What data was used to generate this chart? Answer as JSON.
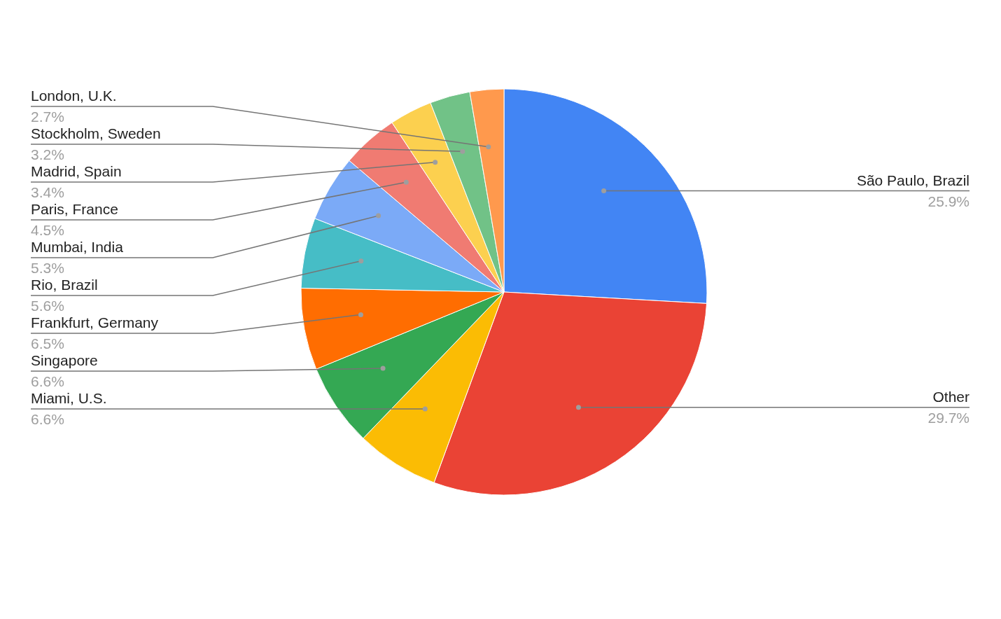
{
  "chart_data": {
    "type": "pie",
    "categories": [
      "São Paulo, Brazil",
      "Other",
      "Miami, U.S.",
      "Singapore",
      "Frankfurt, Germany",
      "Rio, Brazil",
      "Mumbai, India",
      "Paris, France",
      "Madrid, Spain",
      "Stockholm, Sweden",
      "London, U.K."
    ],
    "values": [
      25.9,
      29.7,
      6.6,
      6.6,
      6.5,
      5.6,
      5.3,
      4.5,
      3.4,
      3.2,
      2.7
    ],
    "value_labels": [
      "25.9%",
      "29.7%",
      "6.6%",
      "6.6%",
      "6.5%",
      "5.6%",
      "5.3%",
      "4.5%",
      "3.4%",
      "3.2%",
      "2.7%"
    ],
    "colors": [
      "#4285f4",
      "#ea4335",
      "#fbbc04",
      "#34a853",
      "#ff6d01",
      "#46bdc6",
      "#7baaf7",
      "#f07b72",
      "#fcd04f",
      "#71c287",
      "#ff994d"
    ]
  }
}
